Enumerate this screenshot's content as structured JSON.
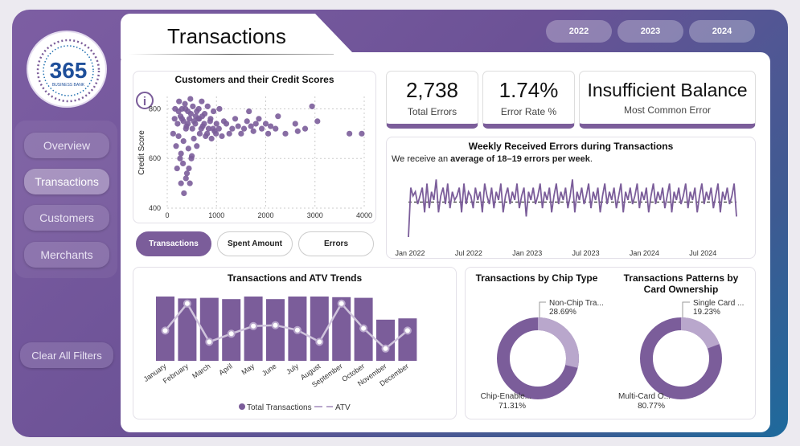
{
  "page": {
    "title": "Transactions"
  },
  "years": [
    "2022",
    "2023",
    "2024"
  ],
  "logo": {
    "number": "365",
    "subtitle": "BUSINESS BANK"
  },
  "nav": {
    "items": [
      "Overview",
      "Transactions",
      "Customers",
      "Merchants"
    ],
    "clear_filters": "Clear All Filters"
  },
  "kpis": [
    {
      "value": "2,738",
      "label": "Total Errors"
    },
    {
      "value": "1.74%",
      "label": "Error Rate %"
    },
    {
      "value": "Insufficient Balance",
      "label": "Most Common Error"
    }
  ],
  "info_icon": "i",
  "scatter": {
    "title": "Customers and their Credit Scores",
    "ylabel": "Credit Score",
    "xticks": [
      "0",
      "1000",
      "2000",
      "3000",
      "4000"
    ],
    "yticks": [
      "400",
      "600",
      "800"
    ]
  },
  "toggle": {
    "buttons": [
      "Transactions",
      "Spent Amount",
      "Errors"
    ]
  },
  "weekly": {
    "title": "Weekly Received Errors during Transactions",
    "subtitle_prefix": "We receive an ",
    "subtitle_bold": "average of 18–19 errors per week",
    "subtitle_suffix": ".",
    "xticks": [
      "Jan 2022",
      "Jul 2022",
      "Jan 2023",
      "Jul 2023",
      "Jan 2024",
      "Jul 2024"
    ]
  },
  "trends": {
    "title": "Transactions and ATV Trends",
    "legend_bar": "Total Transactions",
    "legend_line": "ATV"
  },
  "chip": {
    "title": "Transactions by Chip Type"
  },
  "card_own": {
    "title_line1": "Transactions Patterns by",
    "title_line2": "Card Ownership"
  },
  "colors": {
    "accent": "#7b5d9a",
    "accent_light": "#b9a7cc"
  },
  "chart_data": [
    {
      "type": "scatter",
      "title": "Customers and their Credit Scores",
      "xlabel": "",
      "ylabel": "Credit Score",
      "xlim": [
        0,
        4000
      ],
      "ylim": [
        400,
        850
      ],
      "points": [
        [
          240,
          830
        ],
        [
          300,
          800
        ],
        [
          360,
          820
        ],
        [
          420,
          790
        ],
        [
          470,
          840
        ],
        [
          520,
          810
        ],
        [
          580,
          770
        ],
        [
          640,
          800
        ],
        [
          700,
          830
        ],
        [
          760,
          780
        ],
        [
          820,
          810
        ],
        [
          880,
          760
        ],
        [
          940,
          790
        ],
        [
          1000,
          740
        ],
        [
          1060,
          800
        ],
        [
          120,
          700
        ],
        [
          180,
          650
        ],
        [
          230,
          690
        ],
        [
          280,
          620
        ],
        [
          330,
          670
        ],
        [
          380,
          720
        ],
        [
          430,
          640
        ],
        [
          490,
          600
        ],
        [
          540,
          680
        ],
        [
          600,
          650
        ],
        [
          660,
          700
        ],
        [
          720,
          730
        ],
        [
          780,
          690
        ],
        [
          840,
          720
        ],
        [
          900,
          680
        ],
        [
          960,
          710
        ],
        [
          200,
          560
        ],
        [
          260,
          600
        ],
        [
          320,
          580
        ],
        [
          380,
          520
        ],
        [
          440,
          560
        ],
        [
          500,
          610
        ],
        [
          150,
          760
        ],
        [
          210,
          740
        ],
        [
          270,
          770
        ],
        [
          330,
          750
        ],
        [
          390,
          730
        ],
        [
          450,
          760
        ],
        [
          510,
          720
        ],
        [
          570,
          740
        ],
        [
          630,
          760
        ],
        [
          690,
          720
        ],
        [
          750,
          740
        ],
        [
          810,
          700
        ],
        [
          870,
          750
        ],
        [
          930,
          720
        ],
        [
          990,
          700
        ],
        [
          1050,
          720
        ],
        [
          1110,
          690
        ],
        [
          1150,
          750
        ],
        [
          1200,
          740
        ],
        [
          1260,
          700
        ],
        [
          1320,
          720
        ],
        [
          1380,
          760
        ],
        [
          1440,
          730
        ],
        [
          1500,
          700
        ],
        [
          1560,
          720
        ],
        [
          1620,
          750
        ],
        [
          1660,
          790
        ],
        [
          1700,
          730
        ],
        [
          1750,
          710
        ],
        [
          1800,
          740
        ],
        [
          1860,
          760
        ],
        [
          1920,
          720
        ],
        [
          2000,
          740
        ],
        [
          2050,
          700
        ],
        [
          2100,
          730
        ],
        [
          2200,
          720
        ],
        [
          2250,
          770
        ],
        [
          2400,
          700
        ],
        [
          2600,
          740
        ],
        [
          2650,
          710
        ],
        [
          2800,
          720
        ],
        [
          2940,
          810
        ],
        [
          3050,
          750
        ],
        [
          3700,
          700
        ],
        [
          3950,
          700
        ],
        [
          160,
          800
        ],
        [
          230,
          790
        ],
        [
          300,
          760
        ],
        [
          370,
          800
        ],
        [
          420,
          740
        ],
        [
          480,
          780
        ],
        [
          540,
          750
        ],
        [
          600,
          790
        ],
        [
          650,
          760
        ],
        [
          710,
          770
        ],
        [
          280,
          500
        ],
        [
          340,
          460
        ],
        [
          400,
          540
        ],
        [
          460,
          500
        ]
      ]
    },
    {
      "type": "line",
      "title": "Weekly Received Errors during Transactions",
      "x_range": [
        "Jan 2022",
        "Oct 2024"
      ],
      "average": 18.5,
      "ylim": [
        10,
        26
      ],
      "values": [
        10,
        22,
        20,
        21,
        18,
        20,
        22,
        16,
        23,
        17,
        21,
        19,
        24,
        16,
        20,
        22,
        18,
        23,
        17,
        21,
        19,
        20,
        22,
        16,
        23,
        18,
        21,
        20,
        17,
        22,
        19,
        21,
        16,
        23,
        20,
        18,
        22,
        17,
        21,
        19,
        23,
        16,
        20,
        22,
        18,
        21,
        19,
        23,
        17,
        20,
        22,
        15,
        21,
        19,
        22,
        18,
        20,
        23,
        17,
        21,
        19,
        22,
        16,
        20,
        23,
        18,
        21,
        19,
        22,
        17,
        20,
        24,
        16,
        21,
        19,
        22,
        18,
        20,
        23,
        17,
        21,
        19,
        22,
        16,
        20,
        23,
        18,
        21,
        19,
        22,
        17,
        20,
        23,
        16,
        21,
        19,
        22,
        18,
        20,
        23,
        17,
        21,
        19,
        22,
        16,
        20,
        23,
        18,
        21,
        19,
        22,
        17,
        20,
        23,
        16,
        21,
        19,
        22,
        18,
        20,
        23,
        17,
        21,
        19,
        22,
        16,
        20,
        23,
        18,
        21,
        19,
        22,
        17,
        20,
        23,
        16,
        21,
        19,
        22,
        18,
        20,
        23,
        15
      ]
    },
    {
      "type": "bar",
      "title": "Transactions and ATV Trends",
      "categories": [
        "January",
        "February",
        "March",
        "April",
        "May",
        "June",
        "July",
        "August",
        "September",
        "October",
        "November",
        "December"
      ],
      "series": [
        {
          "name": "Total Transactions",
          "values": [
            100,
            97,
            98,
            96,
            100,
            96,
            100,
            100,
            99,
            98,
            64,
            66
          ]
        },
        {
          "name": "ATV",
          "values": [
            0.35,
            0.95,
            0.1,
            0.28,
            0.45,
            0.47,
            0.36,
            0.1,
            0.95,
            0.4,
            -0.05,
            0.35
          ]
        }
      ]
    },
    {
      "type": "pie",
      "title": "Transactions by Chip Type",
      "labels": [
        "Non-Chip Tra...",
        "Chip-Enable..."
      ],
      "values": [
        28.69,
        71.31
      ],
      "value_labels": [
        "28.69%",
        "71.31%"
      ]
    },
    {
      "type": "pie",
      "title": "Transactions Patterns by Card Ownership",
      "labels": [
        "Single Card ...",
        "Multi-Card O..."
      ],
      "values": [
        19.23,
        80.77
      ],
      "value_labels": [
        "19.23%",
        "80.77%"
      ]
    }
  ]
}
